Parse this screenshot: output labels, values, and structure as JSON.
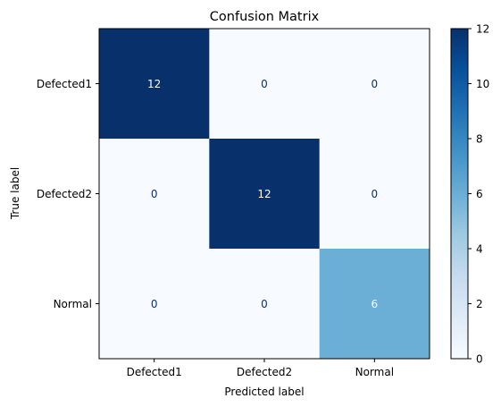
{
  "chart_data": {
    "type": "heatmap",
    "title": "Confusion Matrix",
    "xlabel": "Predicted label",
    "ylabel": "True label",
    "x_categories": [
      "Defected1",
      "Defected2",
      "Normal"
    ],
    "y_categories": [
      "Defected1",
      "Defected2",
      "Normal"
    ],
    "values": [
      [
        12,
        0,
        0
      ],
      [
        0,
        12,
        0
      ],
      [
        0,
        0,
        6
      ]
    ],
    "colorbar": {
      "range": [
        0,
        12
      ],
      "ticks": [
        "0",
        "2",
        "4",
        "6",
        "8",
        "10",
        "12"
      ],
      "colormap": "Blues"
    }
  }
}
